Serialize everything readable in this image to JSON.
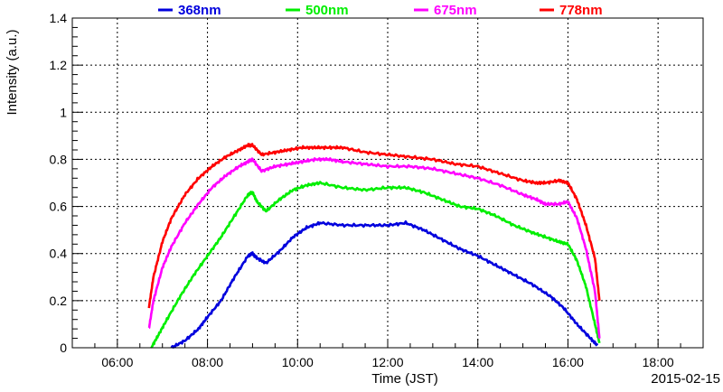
{
  "chart_data": {
    "type": "line",
    "title": "",
    "xlabel": "Time (JST)",
    "ylabel": "Intensity (a.u.)",
    "date_label": "2015-02-15",
    "x_unit": "hours",
    "xlim": [
      5.0,
      19.0
    ],
    "ylim": [
      0,
      1.4
    ],
    "x_ticks": [
      {
        "value": 6,
        "label": "06:00"
      },
      {
        "value": 8,
        "label": "08:00"
      },
      {
        "value": 10,
        "label": "10:00"
      },
      {
        "value": 12,
        "label": "12:00"
      },
      {
        "value": 14,
        "label": "14:00"
      },
      {
        "value": 16,
        "label": "16:00"
      },
      {
        "value": 18,
        "label": "18:00"
      }
    ],
    "y_ticks": [
      {
        "value": 0,
        "label": "0"
      },
      {
        "value": 0.2,
        "label": "0.2"
      },
      {
        "value": 0.4,
        "label": "0.4"
      },
      {
        "value": 0.6,
        "label": "0.6"
      },
      {
        "value": 0.8,
        "label": "0.8"
      },
      {
        "value": 1.0,
        "label": "1"
      },
      {
        "value": 1.2,
        "label": "1.2"
      },
      {
        "value": 1.4,
        "label": "1.4"
      }
    ],
    "grid": true,
    "legend_position": "top",
    "series": [
      {
        "name": "368nm",
        "color": "#0000dd",
        "x": [
          7.2,
          7.5,
          7.8,
          8.0,
          8.3,
          8.6,
          8.9,
          9.0,
          9.1,
          9.3,
          9.6,
          9.9,
          10.2,
          10.5,
          11.0,
          11.5,
          12.0,
          12.4,
          12.8,
          13.2,
          13.6,
          14.0,
          14.4,
          14.8,
          15.2,
          15.6,
          15.9,
          16.2,
          16.5,
          16.65
        ],
        "y": [
          0.0,
          0.03,
          0.08,
          0.13,
          0.2,
          0.3,
          0.39,
          0.4,
          0.38,
          0.36,
          0.41,
          0.47,
          0.51,
          0.53,
          0.52,
          0.52,
          0.52,
          0.53,
          0.5,
          0.46,
          0.42,
          0.39,
          0.35,
          0.31,
          0.27,
          0.22,
          0.17,
          0.1,
          0.04,
          0.01
        ]
      },
      {
        "name": "500nm",
        "color": "#00ee00",
        "x": [
          6.75,
          6.9,
          7.1,
          7.4,
          7.7,
          8.0,
          8.3,
          8.6,
          8.9,
          9.0,
          9.1,
          9.3,
          9.6,
          9.9,
          10.2,
          10.5,
          11.0,
          11.5,
          12.0,
          12.4,
          12.8,
          13.2,
          13.6,
          14.0,
          14.4,
          14.8,
          15.2,
          15.5,
          15.8,
          16.0,
          16.2,
          16.4,
          16.6,
          16.7
        ],
        "y": [
          0.0,
          0.05,
          0.12,
          0.22,
          0.31,
          0.39,
          0.47,
          0.56,
          0.65,
          0.66,
          0.62,
          0.58,
          0.63,
          0.67,
          0.69,
          0.7,
          0.68,
          0.67,
          0.68,
          0.68,
          0.66,
          0.63,
          0.6,
          0.59,
          0.56,
          0.52,
          0.49,
          0.47,
          0.45,
          0.44,
          0.37,
          0.26,
          0.1,
          0.02
        ]
      },
      {
        "name": "675nm",
        "color": "#ff00ff",
        "x": [
          6.7,
          6.8,
          7.0,
          7.2,
          7.5,
          7.8,
          8.1,
          8.4,
          8.7,
          8.9,
          9.0,
          9.2,
          9.5,
          9.8,
          10.1,
          10.4,
          10.7,
          11.0,
          11.5,
          12.0,
          12.5,
          13.0,
          13.5,
          14.0,
          14.5,
          15.0,
          15.3,
          15.5,
          15.8,
          16.0,
          16.2,
          16.4,
          16.6,
          16.7
        ],
        "y": [
          0.08,
          0.2,
          0.34,
          0.43,
          0.53,
          0.61,
          0.68,
          0.73,
          0.77,
          0.79,
          0.8,
          0.75,
          0.77,
          0.78,
          0.79,
          0.8,
          0.8,
          0.79,
          0.78,
          0.77,
          0.77,
          0.76,
          0.74,
          0.72,
          0.69,
          0.65,
          0.63,
          0.61,
          0.61,
          0.62,
          0.55,
          0.42,
          0.24,
          0.04
        ]
      },
      {
        "name": "778nm",
        "color": "#ff0000",
        "x": [
          6.7,
          6.8,
          7.0,
          7.2,
          7.5,
          7.8,
          8.1,
          8.4,
          8.7,
          8.9,
          9.0,
          9.2,
          9.5,
          9.8,
          10.1,
          10.4,
          10.7,
          11.0,
          11.5,
          12.0,
          12.5,
          13.0,
          13.5,
          14.0,
          14.5,
          15.0,
          15.3,
          15.5,
          15.8,
          16.0,
          16.2,
          16.4,
          16.6,
          16.7
        ],
        "y": [
          0.17,
          0.3,
          0.45,
          0.55,
          0.65,
          0.72,
          0.77,
          0.81,
          0.84,
          0.86,
          0.86,
          0.82,
          0.83,
          0.84,
          0.85,
          0.85,
          0.85,
          0.85,
          0.83,
          0.82,
          0.81,
          0.8,
          0.78,
          0.77,
          0.74,
          0.71,
          0.7,
          0.7,
          0.71,
          0.7,
          0.63,
          0.52,
          0.38,
          0.2
        ]
      }
    ]
  }
}
